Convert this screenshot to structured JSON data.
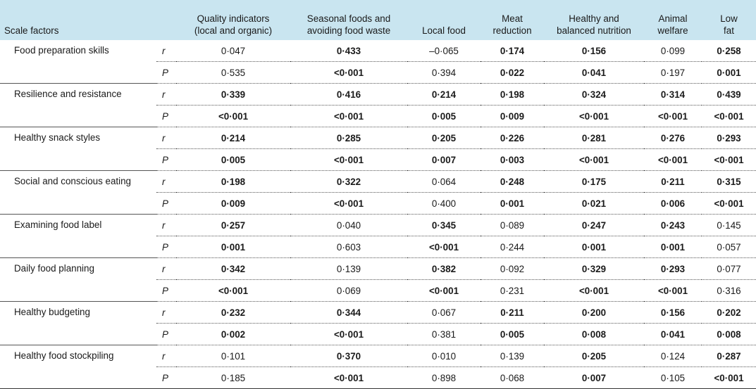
{
  "headers": {
    "scale_factors": "Scale factors",
    "columns": [
      [
        "Quality indicators",
        "(local and organic)"
      ],
      [
        "Seasonal foods and",
        "avoiding food waste"
      ],
      [
        "Local food"
      ],
      [
        "Meat",
        "reduction"
      ],
      [
        "Healthy and",
        "balanced nutrition"
      ],
      [
        "Animal",
        "welfare"
      ],
      [
        "Low",
        "fat"
      ]
    ]
  },
  "stat_labels": {
    "r": "r",
    "p": "P"
  },
  "rows": [
    {
      "factor": "Food preparation skills",
      "r": [
        [
          "0·047",
          false
        ],
        [
          "0·433",
          true
        ],
        [
          "–0·065",
          false
        ],
        [
          "0·174",
          true
        ],
        [
          "0·156",
          true
        ],
        [
          "0·099",
          false
        ],
        [
          "0·258",
          true
        ]
      ],
      "p": [
        [
          "0·535",
          false
        ],
        [
          "<0·001",
          true
        ],
        [
          "0·394",
          false
        ],
        [
          "0·022",
          true
        ],
        [
          "0·041",
          true
        ],
        [
          "0·197",
          false
        ],
        [
          "0·001",
          true
        ]
      ]
    },
    {
      "factor": "Resilience and resistance",
      "r": [
        [
          "0·339",
          true
        ],
        [
          "0·416",
          true
        ],
        [
          "0·214",
          true
        ],
        [
          "0·198",
          true
        ],
        [
          "0·324",
          true
        ],
        [
          "0·314",
          true
        ],
        [
          "0·439",
          true
        ]
      ],
      "p": [
        [
          "<0·001",
          true
        ],
        [
          "<0·001",
          true
        ],
        [
          "0·005",
          true
        ],
        [
          "0·009",
          true
        ],
        [
          "<0·001",
          true
        ],
        [
          "<0·001",
          true
        ],
        [
          "<0·001",
          true
        ]
      ]
    },
    {
      "factor": "Healthy snack styles",
      "r": [
        [
          "0·214",
          true
        ],
        [
          "0·285",
          true
        ],
        [
          "0·205",
          true
        ],
        [
          "0·226",
          true
        ],
        [
          "0·281",
          true
        ],
        [
          "0·276",
          true
        ],
        [
          "0·293",
          true
        ]
      ],
      "p": [
        [
          "0·005",
          true
        ],
        [
          "<0·001",
          true
        ],
        [
          "0·007",
          true
        ],
        [
          "0·003",
          true
        ],
        [
          "<0·001",
          true
        ],
        [
          "<0·001",
          true
        ],
        [
          "<0·001",
          true
        ]
      ]
    },
    {
      "factor": "Social and conscious eating",
      "r": [
        [
          "0·198",
          true
        ],
        [
          "0·322",
          true
        ],
        [
          "0·064",
          false
        ],
        [
          "0·248",
          true
        ],
        [
          "0·175",
          true
        ],
        [
          "0·211",
          true
        ],
        [
          "0·315",
          true
        ]
      ],
      "p": [
        [
          "0·009",
          true
        ],
        [
          "<0·001",
          true
        ],
        [
          "0·400",
          false
        ],
        [
          "0·001",
          true
        ],
        [
          "0·021",
          true
        ],
        [
          "0·006",
          true
        ],
        [
          "<0·001",
          true
        ]
      ]
    },
    {
      "factor": "Examining food label",
      "r": [
        [
          "0·257",
          true
        ],
        [
          "0·040",
          false
        ],
        [
          "0·345",
          true
        ],
        [
          "0·089",
          false
        ],
        [
          "0·247",
          true
        ],
        [
          "0·243",
          true
        ],
        [
          "0·145",
          false
        ]
      ],
      "p": [
        [
          "0·001",
          true
        ],
        [
          "0·603",
          false
        ],
        [
          "<0·001",
          true
        ],
        [
          "0·244",
          false
        ],
        [
          "0·001",
          true
        ],
        [
          "0·001",
          true
        ],
        [
          "0·057",
          false
        ]
      ]
    },
    {
      "factor": "Daily food planning",
      "r": [
        [
          "0·342",
          true
        ],
        [
          "0·139",
          false
        ],
        [
          "0·382",
          true
        ],
        [
          "0·092",
          false
        ],
        [
          "0·329",
          true
        ],
        [
          "0·293",
          true
        ],
        [
          "0·077",
          false
        ]
      ],
      "p": [
        [
          "<0·001",
          true
        ],
        [
          "0·069",
          false
        ],
        [
          "<0·001",
          true
        ],
        [
          "0·231",
          false
        ],
        [
          "<0·001",
          true
        ],
        [
          "<0·001",
          true
        ],
        [
          "0·316",
          false
        ]
      ]
    },
    {
      "factor": "Healthy budgeting",
      "r": [
        [
          "0·232",
          true
        ],
        [
          "0·344",
          true
        ],
        [
          "0·067",
          false
        ],
        [
          "0·211",
          true
        ],
        [
          "0·200",
          true
        ],
        [
          "0·156",
          true
        ],
        [
          "0·202",
          true
        ]
      ],
      "p": [
        [
          "0·002",
          true
        ],
        [
          "<0·001",
          true
        ],
        [
          "0·381",
          false
        ],
        [
          "0·005",
          true
        ],
        [
          "0·008",
          true
        ],
        [
          "0·041",
          true
        ],
        [
          "0·008",
          true
        ]
      ]
    },
    {
      "factor": "Healthy food stockpiling",
      "r": [
        [
          "0·101",
          false
        ],
        [
          "0·370",
          true
        ],
        [
          "0·010",
          false
        ],
        [
          "0·139",
          false
        ],
        [
          "0·205",
          true
        ],
        [
          "0·124",
          false
        ],
        [
          "0·287",
          true
        ]
      ],
      "p": [
        [
          "0·185",
          false
        ],
        [
          "<0·001",
          true
        ],
        [
          "0·898",
          false
        ],
        [
          "0·068",
          false
        ],
        [
          "0·007",
          true
        ],
        [
          "0·105",
          false
        ],
        [
          "<0·001",
          true
        ]
      ]
    }
  ]
}
